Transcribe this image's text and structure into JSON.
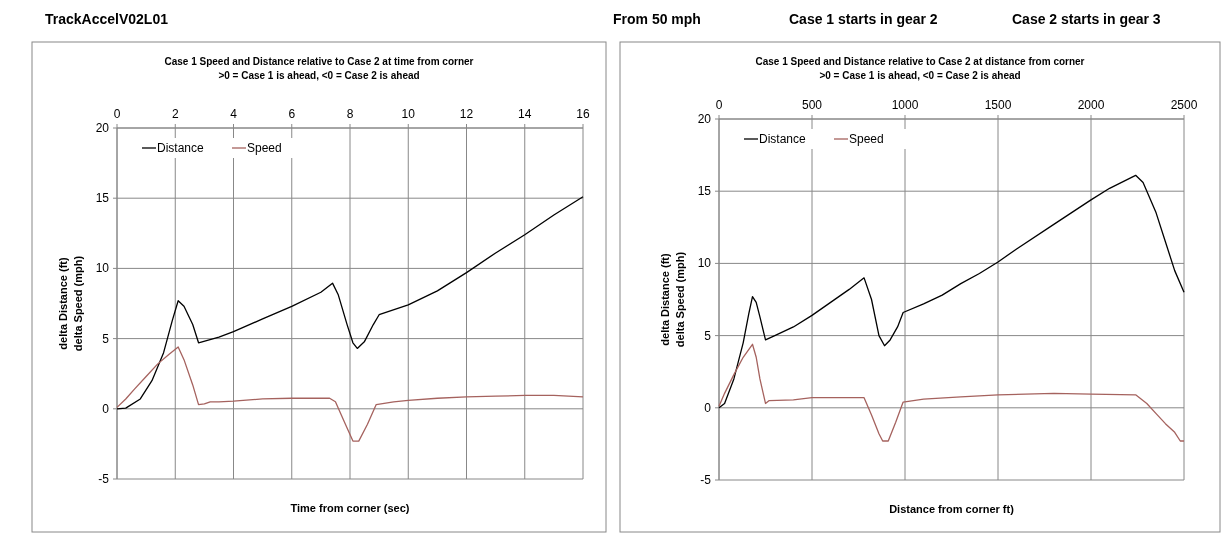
{
  "chart_data": [
    {
      "type": "other",
      "annotations": [
        "TrackAccelV02L01",
        "From   50    mph",
        "Case 1 starts in gear   2",
        "Case 2 starts in gear   3"
      ]
    },
    {
      "type": "line",
      "title": "Case 1 Speed and  Distance relative to Case 2 at time from corner",
      "subtitle": ">0 = Case 1 is ahead,   <0 = Case 2 is ahead",
      "xlabel": "Time from corner  (sec)",
      "ylabel": "delta Distance  (ft)\ndelta Speed  (mph)",
      "xlim": [
        0,
        16
      ],
      "xticks": [
        0,
        2,
        4,
        6,
        8,
        10,
        12,
        14,
        16
      ],
      "ylim": [
        -5,
        20
      ],
      "yticks": [
        -5,
        0,
        5,
        10,
        15,
        20
      ],
      "grid": true,
      "legend": "top left",
      "marker": "none",
      "line_style": "solid",
      "series": [
        {
          "name": "Distance",
          "color": "#000000",
          "x": [
            0,
            0.3,
            0.8,
            1.2,
            1.6,
            1.9,
            2.1,
            2.3,
            2.6,
            2.8,
            3.5,
            4,
            5,
            6,
            7,
            7.4,
            7.6,
            7.9,
            8.1,
            8.25,
            8.5,
            8.8,
            9,
            10,
            11,
            12,
            13,
            14,
            15,
            16
          ],
          "values": [
            0,
            0.05,
            0.7,
            2,
            4,
            6.3,
            7.7,
            7.3,
            6,
            4.7,
            5.1,
            5.5,
            6.4,
            7.3,
            8.3,
            8.95,
            8.1,
            6,
            4.7,
            4.3,
            4.8,
            6,
            6.7,
            7.4,
            8.4,
            9.7,
            11.1,
            12.4,
            13.8,
            15.1
          ]
        },
        {
          "name": "Speed",
          "color": "#a5625e",
          "x": [
            0,
            0.3,
            0.6,
            1,
            1.4,
            1.8,
            2.1,
            2.3,
            2.6,
            2.8,
            3,
            3.2,
            3.5,
            4,
            5,
            6,
            7.3,
            7.5,
            7.8,
            8.1,
            8.3,
            8.6,
            8.9,
            9.5,
            10,
            11,
            12,
            13,
            14,
            15,
            16
          ],
          "values": [
            0.1,
            0.7,
            1.4,
            2.3,
            3.2,
            3.9,
            4.4,
            3.5,
            1.7,
            0.3,
            0.35,
            0.5,
            0.5,
            0.55,
            0.7,
            0.75,
            0.75,
            0.5,
            -0.9,
            -2.3,
            -2.3,
            -1.1,
            0.3,
            0.5,
            0.6,
            0.75,
            0.85,
            0.9,
            0.95,
            0.95,
            0.85
          ]
        }
      ]
    },
    {
      "type": "line",
      "title": "Case 1 Speed and Distance relative to Case 2 at distance from corner",
      "subtitle": ">0 = Case 1 is ahead,  <0 = Case 2 is ahead",
      "xlabel": "Distance from corner  ft)",
      "ylabel": "delta Distance  (ft)\ndelta Speed  (mph)",
      "xlim": [
        0,
        2500
      ],
      "xticks": [
        0,
        500,
        1000,
        1500,
        2000,
        2500
      ],
      "ylim": [
        -5,
        20
      ],
      "yticks": [
        -5,
        0,
        5,
        10,
        15,
        20
      ],
      "grid": true,
      "legend": "top left",
      "marker": "none",
      "line_style": "solid",
      "series": [
        {
          "name": "Distance",
          "color": "#000000",
          "x": [
            0,
            30,
            80,
            130,
            160,
            180,
            200,
            220,
            250,
            300,
            400,
            500,
            600,
            700,
            780,
            820,
            860,
            890,
            920,
            960,
            990,
            1100,
            1200,
            1300,
            1400,
            1500,
            1600,
            1800,
            2000,
            2100,
            2240,
            2280,
            2350,
            2400,
            2450,
            2500
          ],
          "values": [
            0,
            0.3,
            2,
            4.5,
            6.5,
            7.7,
            7.3,
            6.3,
            4.7,
            5,
            5.6,
            6.4,
            7.3,
            8.2,
            9,
            7.5,
            5,
            4.3,
            4.7,
            5.6,
            6.6,
            7.2,
            7.8,
            8.6,
            9.3,
            10.1,
            11,
            12.7,
            14.4,
            15.2,
            16.1,
            15.6,
            13.5,
            11.5,
            9.5,
            8
          ]
        },
        {
          "name": "Speed",
          "color": "#a5625e",
          "x": [
            0,
            30,
            80,
            130,
            180,
            200,
            220,
            250,
            270,
            400,
            500,
            780,
            820,
            860,
            880,
            910,
            950,
            990,
            1100,
            1300,
            1500,
            1800,
            2000,
            2240,
            2300,
            2350,
            2400,
            2450,
            2480,
            2500
          ],
          "values": [
            0.1,
            1,
            2.3,
            3.5,
            4.4,
            3.5,
            2,
            0.3,
            0.5,
            0.55,
            0.7,
            0.7,
            -0.5,
            -1.8,
            -2.3,
            -2.3,
            -1,
            0.4,
            0.6,
            0.75,
            0.9,
            1,
            0.95,
            0.9,
            0.3,
            -0.4,
            -1.1,
            -1.7,
            -2.3,
            -2.3
          ]
        }
      ]
    }
  ]
}
